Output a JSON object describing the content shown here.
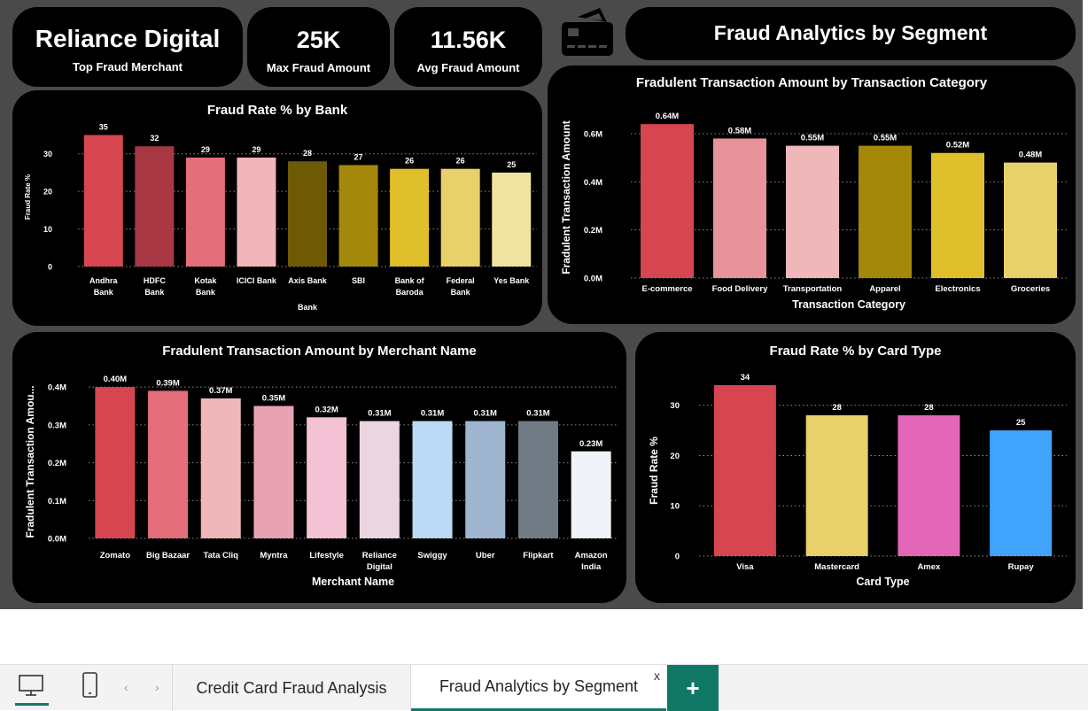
{
  "kpis": {
    "top_merchant": {
      "value": "Reliance Digital",
      "label": "Top Fraud Merchant"
    },
    "max_fraud": {
      "value": "25K",
      "label": "Max Fraud Amount"
    },
    "avg_fraud": {
      "value": "11.56K",
      "label": "Avg Fraud Amount"
    }
  },
  "page_title": "Fraud Analytics by Segment",
  "tabs": {
    "tab1": "Credit Card Fraud Analysis",
    "tab2": "Fraud Analytics by Segment",
    "close": "x",
    "add": "+"
  },
  "chart_data": [
    {
      "id": "bank",
      "type": "bar",
      "title": "Fraud Rate % by Bank",
      "xlabel": "Bank",
      "ylabel": "Fraud Rate %",
      "categories": [
        [
          "Andhra",
          "Bank"
        ],
        [
          "HDFC",
          "Bank"
        ],
        [
          "Kotak",
          "Bank"
        ],
        [
          "ICICI Bank"
        ],
        [
          "Axis Bank"
        ],
        [
          "SBI"
        ],
        [
          "Bank of",
          "Baroda"
        ],
        [
          "Federal",
          "Bank"
        ],
        [
          "Yes Bank"
        ]
      ],
      "values": [
        35,
        32,
        29,
        29,
        28,
        27,
        26,
        26,
        25
      ],
      "data_labels": [
        "35",
        "32",
        "29",
        "29",
        "28",
        "27",
        "26",
        "26",
        "25"
      ],
      "colors": [
        "#d64550",
        "#a83744",
        "#e46e7a",
        "#f2b5ba",
        "#6e5a06",
        "#a3880a",
        "#e0bf2c",
        "#e8d06a",
        "#f0e3a0"
      ],
      "yticks": [
        0,
        10,
        20,
        30
      ],
      "ytick_labels": [
        "0",
        "10",
        "20",
        "30"
      ],
      "ylim": [
        0,
        37
      ]
    },
    {
      "id": "category",
      "type": "bar",
      "title": "Fradulent Transaction Amount by Transaction Category",
      "xlabel": "Transaction Category",
      "ylabel": "Fradulent Transaction Amount",
      "categories": [
        [
          "E-commerce"
        ],
        [
          "Food Delivery"
        ],
        [
          "Transportation"
        ],
        [
          "Apparel"
        ],
        [
          "Electronics"
        ],
        [
          "Groceries"
        ]
      ],
      "values": [
        0.64,
        0.58,
        0.55,
        0.55,
        0.52,
        0.48
      ],
      "data_labels": [
        "0.64M",
        "0.58M",
        "0.55M",
        "0.55M",
        "0.52M",
        "0.48M"
      ],
      "colors": [
        "#d64550",
        "#e8939b",
        "#f0b7bb",
        "#a3880a",
        "#e0bf2c",
        "#e8d06a"
      ],
      "yticks": [
        0,
        0.2,
        0.4,
        0.6
      ],
      "ytick_labels": [
        "0.0M",
        "0.2M",
        "0.4M",
        "0.6M"
      ],
      "ylim": [
        0,
        0.67
      ]
    },
    {
      "id": "merchant",
      "type": "bar",
      "title": "Fradulent Transaction Amount by Merchant Name",
      "xlabel": "Merchant Name",
      "ylabel": "Fradulent Transaction Amou...",
      "categories": [
        [
          "Zomato"
        ],
        [
          "Big Bazaar"
        ],
        [
          "Tata Cliq"
        ],
        [
          "Myntra"
        ],
        [
          "Lifestyle"
        ],
        [
          "Reliance",
          "Digital"
        ],
        [
          "Swiggy"
        ],
        [
          "Uber"
        ],
        [
          "Flipkart"
        ],
        [
          "Amazon",
          "India"
        ]
      ],
      "values": [
        0.4,
        0.39,
        0.37,
        0.35,
        0.32,
        0.31,
        0.31,
        0.31,
        0.31,
        0.23
      ],
      "data_labels": [
        "0.40M",
        "0.39M",
        "0.37M",
        "0.35M",
        "0.32M",
        "0.31M",
        "0.31M",
        "0.31M",
        "0.31M",
        "0.23M"
      ],
      "colors": [
        "#d64550",
        "#e46e7a",
        "#f0b7bb",
        "#e8a3b3",
        "#f2c2d4",
        "#ead5e0",
        "#bcd9f5",
        "#9fb5cf",
        "#707b86",
        "#f0f3f7"
      ],
      "yticks": [
        0,
        0.1,
        0.2,
        0.3,
        0.4
      ],
      "ytick_labels": [
        "0.0M",
        "0.1M",
        "0.2M",
        "0.3M",
        "0.4M"
      ],
      "ylim": [
        0,
        0.405
      ]
    },
    {
      "id": "card",
      "type": "bar",
      "title": "Fraud Rate % by Card Type",
      "xlabel": "Card Type",
      "ylabel": "Fraud Rate %",
      "categories": [
        [
          "Visa"
        ],
        [
          "Mastercard"
        ],
        [
          "Amex"
        ],
        [
          "Rupay"
        ]
      ],
      "values": [
        34,
        28,
        28,
        25
      ],
      "data_labels": [
        "34",
        "28",
        "28",
        "25"
      ],
      "colors": [
        "#d64550",
        "#e8d06a",
        "#e466b8",
        "#40a4ff"
      ],
      "yticks": [
        0,
        10,
        20,
        30
      ],
      "ytick_labels": [
        "0",
        "10",
        "20",
        "30"
      ],
      "ylim": [
        0,
        34
      ]
    }
  ]
}
